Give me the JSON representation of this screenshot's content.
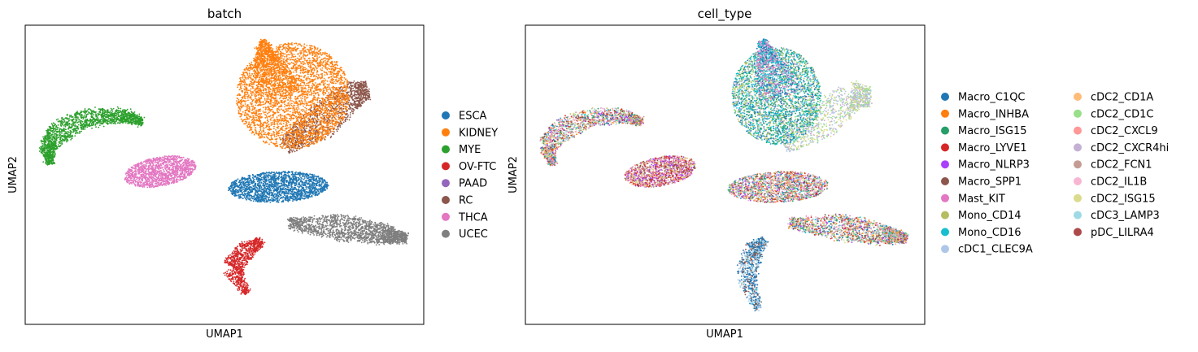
{
  "chart_data": [
    {
      "type": "scatter",
      "title": "batch",
      "xlabel": "UMAP1",
      "ylabel": "UMAP2",
      "grid": false,
      "legend_placement": "right",
      "legend": [
        {
          "name": "ESCA",
          "color": "#1f77b4"
        },
        {
          "name": "KIDNEY",
          "color": "#ff7f0e"
        },
        {
          "name": "MYE",
          "color": "#2ca02c"
        },
        {
          "name": "OV-FTC",
          "color": "#d62728"
        },
        {
          "name": "PAAD",
          "color": "#9467bd"
        },
        {
          "name": "RC",
          "color": "#8c564b"
        },
        {
          "name": "THCA",
          "color": "#e377c2"
        },
        {
          "name": "UCEC",
          "color": "#7f7f7f"
        }
      ]
    },
    {
      "type": "scatter",
      "title": "cell_type",
      "xlabel": "UMAP1",
      "ylabel": "UMAP2",
      "grid": false,
      "legend_placement": "right",
      "legend": [
        {
          "name": "Macro_C1QC",
          "color": "#1f77b4"
        },
        {
          "name": "Macro_INHBA",
          "color": "#ff7f0e"
        },
        {
          "name": "Macro_ISG15",
          "color": "#279e68"
        },
        {
          "name": "Macro_LYVE1",
          "color": "#d62728"
        },
        {
          "name": "Macro_NLRP3",
          "color": "#aa40fc"
        },
        {
          "name": "Macro_SPP1",
          "color": "#8c564b"
        },
        {
          "name": "Mast_KIT",
          "color": "#e377c2"
        },
        {
          "name": "Mono_CD14",
          "color": "#b5bd61"
        },
        {
          "name": "Mono_CD16",
          "color": "#17becf"
        },
        {
          "name": "cDC1_CLEC9A",
          "color": "#aec7e8"
        },
        {
          "name": "cDC2_CD1A",
          "color": "#ffbb78"
        },
        {
          "name": "cDC2_CD1C",
          "color": "#98df8a"
        },
        {
          "name": "cDC2_CXCL9",
          "color": "#ff9896"
        },
        {
          "name": "cDC2_CXCR4hi",
          "color": "#c5b0d5"
        },
        {
          "name": "cDC2_FCN1",
          "color": "#c49c94"
        },
        {
          "name": "cDC2_IL1B",
          "color": "#f7b6d2"
        },
        {
          "name": "cDC2_ISG15",
          "color": "#dbdb8d"
        },
        {
          "name": "cDC3_LAMP3",
          "color": "#9edae5"
        },
        {
          "name": "pDC_LILRA4",
          "color": "#ad494a"
        }
      ]
    }
  ]
}
